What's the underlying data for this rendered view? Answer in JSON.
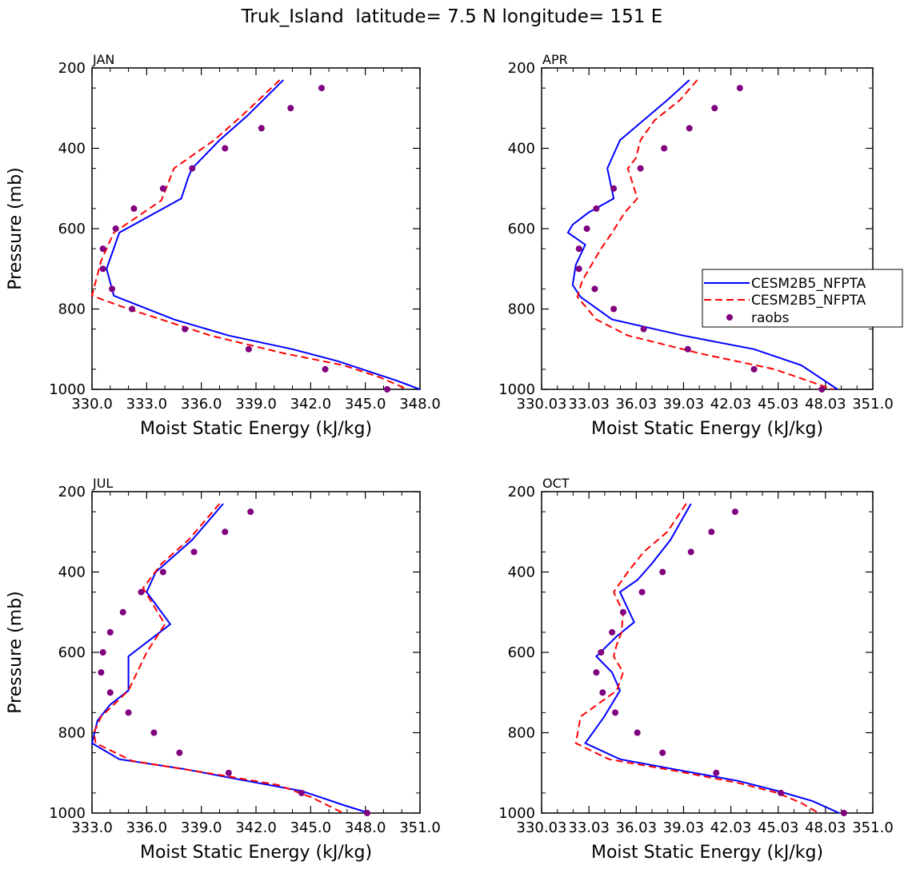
{
  "figure": {
    "title": "Truk_Island  latitude= 7.5 N longitude= 151 E"
  },
  "colors": {
    "model1": "#0000ff",
    "model2": "#ff0000",
    "obs": "#800080",
    "axis": "#000000"
  },
  "legend": {
    "entries": [
      "CESM2B5_NFPTA",
      "CESM2B5_NFPTA",
      "raobs"
    ]
  },
  "chart_data": [
    {
      "type": "line",
      "title": "JAN",
      "xlabel": "Moist Static Energy (kJ/kg)",
      "ylabel": "Pressure (mb)",
      "xlim": [
        330,
        348
      ],
      "ylim": [
        1000,
        200
      ],
      "xticks": [
        330,
        333,
        336,
        339,
        342,
        345,
        348
      ],
      "xticklabels": [
        "330.0",
        "333.0",
        "336.0",
        "339.0",
        "342.0",
        "345.0",
        "348.0"
      ],
      "yticks": [
        200,
        400,
        600,
        800,
        1000
      ],
      "yticklabels": [
        "200",
        "400",
        "600",
        "800",
        "1000"
      ],
      "series": [
        {
          "name": "CESM2B5_NFPTA",
          "style": "solid",
          "x": [
            340.5,
            338.5,
            337.0,
            335.5,
            335.3,
            334.9,
            331.5,
            330.8,
            331.2,
            334.5,
            337.5,
            341.0,
            343.5,
            345.5,
            346.7,
            348.0
          ],
          "y": [
            230,
            320,
            380,
            450,
            470,
            525,
            610,
            700,
            767,
            826,
            866,
            900,
            930,
            960,
            978,
            1000
          ]
        },
        {
          "name": "CESM2B5_NFPTA",
          "style": "dashed",
          "x": [
            340.3,
            338.2,
            336.7,
            334.5,
            333.8,
            331.2,
            330.5,
            330.0,
            332.0,
            333.8,
            336.5,
            340.5,
            343.8,
            345.8,
            347.3
          ],
          "y": [
            230,
            320,
            380,
            450,
            530,
            610,
            680,
            767,
            800,
            826,
            866,
            910,
            940,
            970,
            1000
          ]
        },
        {
          "name": "raobs",
          "style": "dots",
          "x": [
            342.6,
            340.9,
            339.3,
            337.3,
            335.5,
            333.9,
            332.3,
            331.3,
            330.6,
            330.6,
            331.1,
            332.2,
            335.1,
            338.6,
            342.8,
            346.2
          ],
          "y": [
            250,
            300,
            350,
            400,
            450,
            500,
            550,
            600,
            650,
            700,
            750,
            800,
            850,
            900,
            950,
            1000
          ]
        }
      ]
    },
    {
      "type": "line",
      "title": "APR",
      "xlabel": "Moist Static Energy (kJ/kg)",
      "ylabel": "",
      "xlim": [
        330.03,
        351.03
      ],
      "ylim": [
        1000,
        200
      ],
      "xticks": [
        330.03,
        333.03,
        336.03,
        339.03,
        342.03,
        345.03,
        348.03,
        351.03
      ],
      "xticklabels": [
        "330.03",
        "33.03",
        "36.03",
        "39.03",
        "42.03",
        "45.03",
        "48.03",
        "351.0"
      ],
      "yticks": [
        200,
        400,
        600,
        800,
        1000
      ],
      "yticklabels": [
        "200",
        "400",
        "600",
        "800",
        "1000"
      ],
      "series": [
        {
          "name": "CESM2B5_NFPTA",
          "style": "solid",
          "x": [
            339.4,
            338.0,
            336.5,
            335.0,
            334.2,
            334.6,
            333.0,
            332.0,
            331.7,
            332.8,
            332.2,
            332.0,
            332.5,
            334.5,
            339.0,
            343.5,
            346.5,
            348.8
          ],
          "y": [
            230,
            280,
            330,
            380,
            450,
            525,
            560,
            590,
            610,
            640,
            690,
            740,
            770,
            826,
            866,
            900,
            940,
            1000
          ]
        },
        {
          "name": "CESM2B5_NFPTA",
          "style": "dashed",
          "x": [
            339.9,
            338.8,
            337.2,
            336.3,
            336.0,
            335.5,
            336.1,
            335.3,
            334.5,
            333.8,
            333.2,
            332.6,
            332.3,
            333.5,
            335.5,
            340.0,
            344.8,
            347.0,
            348.5
          ],
          "y": [
            230,
            280,
            330,
            380,
            425,
            450,
            525,
            560,
            610,
            650,
            690,
            730,
            770,
            826,
            866,
            910,
            950,
            980,
            1000
          ]
        },
        {
          "name": "raobs",
          "style": "dots",
          "x": [
            342.6,
            341.0,
            339.4,
            337.8,
            336.3,
            334.6,
            333.5,
            332.9,
            332.4,
            332.4,
            333.4,
            334.6,
            336.5,
            339.3,
            343.5,
            347.8
          ],
          "y": [
            250,
            300,
            350,
            400,
            450,
            500,
            550,
            600,
            650,
            700,
            750,
            800,
            850,
            900,
            950,
            1000
          ]
        }
      ]
    },
    {
      "type": "line",
      "title": "JUL",
      "xlabel": "Moist Static Energy (kJ/kg)",
      "ylabel": "Pressure (mb)",
      "xlim": [
        333,
        351
      ],
      "ylim": [
        1000,
        200
      ],
      "xticks": [
        333,
        336,
        339,
        342,
        345,
        348,
        351
      ],
      "xticklabels": [
        "333.0",
        "336.0",
        "339.0",
        "342.0",
        "345.0",
        "348.0",
        "351.0"
      ],
      "yticks": [
        200,
        400,
        600,
        800,
        1000
      ],
      "yticklabels": [
        "200",
        "400",
        "600",
        "800",
        "1000"
      ],
      "series": [
        {
          "name": "CESM2B5_NFPTA",
          "style": "solid",
          "x": [
            340.2,
            338.5,
            337.0,
            336.5,
            336.0,
            337.3,
            335.0,
            335.0,
            334.0,
            333.3,
            333.0,
            334.5,
            338.0,
            341.5,
            344.5,
            345.5,
            346.8,
            348.2
          ],
          "y": [
            230,
            320,
            380,
            400,
            450,
            530,
            610,
            695,
            730,
            770,
            826,
            866,
            890,
            920,
            945,
            960,
            980,
            1000
          ]
        },
        {
          "name": "CESM2B5_NFPTA",
          "style": "dashed",
          "x": [
            340.0,
            338.3,
            336.8,
            335.8,
            337.0,
            336.0,
            335.0,
            333.5,
            333.1,
            333.2,
            335.2,
            340.0,
            343.2,
            345.0,
            346.8
          ],
          "y": [
            230,
            320,
            380,
            440,
            530,
            600,
            695,
            760,
            800,
            826,
            870,
            905,
            930,
            960,
            1000
          ]
        },
        {
          "name": "raobs",
          "style": "dots",
          "x": [
            341.7,
            340.3,
            338.6,
            336.9,
            335.7,
            334.7,
            334.0,
            333.6,
            333.5,
            334.0,
            335.0,
            336.4,
            337.8,
            340.5,
            344.5,
            348.1
          ],
          "y": [
            250,
            300,
            350,
            400,
            450,
            500,
            550,
            600,
            650,
            700,
            750,
            800,
            850,
            900,
            950,
            1000
          ]
        }
      ]
    },
    {
      "type": "line",
      "title": "OCT",
      "xlabel": "Moist Static Energy (kJ/kg)",
      "ylabel": "",
      "xlim": [
        330.03,
        351.03
      ],
      "ylim": [
        1000,
        200
      ],
      "xticks": [
        330.03,
        333.03,
        336.03,
        339.03,
        342.03,
        345.03,
        348.03,
        351.03
      ],
      "xticklabels": [
        "330.03",
        "33.03",
        "36.03",
        "39.03",
        "42.03",
        "45.03",
        "48.03",
        "351.0"
      ],
      "yticks": [
        200,
        400,
        600,
        800,
        1000
      ],
      "yticklabels": [
        "200",
        "400",
        "600",
        "800",
        "1000"
      ],
      "series": [
        {
          "name": "CESM2B5_NFPTA",
          "style": "solid",
          "x": [
            339.5,
            338.2,
            337.0,
            336.1,
            335.0,
            335.9,
            334.8,
            333.5,
            334.5,
            335.0,
            334.0,
            332.8,
            335.0,
            339.0,
            342.5,
            345.0,
            347.2,
            348.9
          ],
          "y": [
            230,
            320,
            380,
            420,
            450,
            525,
            560,
            610,
            650,
            695,
            760,
            826,
            866,
            895,
            920,
            945,
            970,
            1000
          ]
        },
        {
          "name": "CESM2B5_NFPTA",
          "style": "dashed",
          "x": [
            339.2,
            338.0,
            336.5,
            335.5,
            334.6,
            335.2,
            335.1,
            334.8,
            334.6,
            335.2,
            334.8,
            332.5,
            332.2,
            334.3,
            338.5,
            342.5,
            345.0,
            346.5,
            347.6
          ],
          "y": [
            230,
            300,
            350,
            400,
            450,
            500,
            550,
            580,
            610,
            650,
            695,
            760,
            826,
            866,
            895,
            925,
            950,
            975,
            1000
          ]
        },
        {
          "name": "raobs",
          "style": "dots",
          "x": [
            342.3,
            340.8,
            339.5,
            337.7,
            336.4,
            335.2,
            334.5,
            333.8,
            333.5,
            333.9,
            334.7,
            336.1,
            337.7,
            341.1,
            345.2,
            349.2
          ],
          "y": [
            250,
            300,
            350,
            400,
            450,
            500,
            550,
            600,
            650,
            700,
            750,
            800,
            850,
            900,
            950,
            1000
          ]
        }
      ]
    }
  ]
}
